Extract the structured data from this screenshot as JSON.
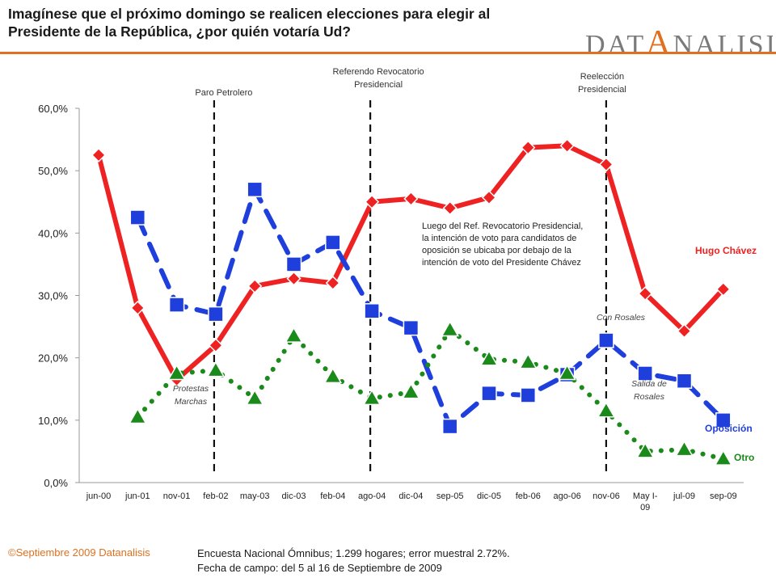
{
  "title": {
    "line1": "Imagínese que el próximo domingo se realicen elecciones para elegir al",
    "line2": "Presidente de la República, ¿por quién votaría Ud?"
  },
  "logo": {
    "text_left": "DAT",
    "text_mid": "A",
    "text_right": "NALISIS",
    "colors": {
      "text": "#7a7a7a",
      "accent": "#e07020"
    }
  },
  "chart_data": {
    "type": "line",
    "categories": [
      "jun-00",
      "jun-01",
      "nov-01",
      "feb-02",
      "may-03",
      "dic-03",
      "feb-04",
      "ago-04",
      "dic-04",
      "sep-05",
      "dic-05",
      "feb-06",
      "ago-06",
      "nov-06",
      "May I-09",
      "jul-09",
      "sep-09"
    ],
    "y_tick_labels": [
      "0,0%",
      "10,0%",
      "20,0%",
      "30,0%",
      "40,0%",
      "50,0%",
      "60,0%"
    ],
    "ylim": [
      0,
      60
    ],
    "series": [
      {
        "name": "Hugo Chávez",
        "color": "#ee2222",
        "marker": "diamond",
        "dash": "solid",
        "values": [
          52.5,
          28,
          16.5,
          22,
          31.5,
          32.7,
          32,
          45,
          45.5,
          44,
          45.7,
          53.7,
          54,
          51,
          30.3,
          24.3,
          31
        ]
      },
      {
        "name": "Oposición",
        "color": "#1f3fdd",
        "marker": "square",
        "dash": "dashed",
        "values": [
          null,
          42.5,
          28.5,
          27,
          47,
          35,
          38.5,
          27.5,
          24.8,
          9,
          14.3,
          14,
          17.3,
          22.8,
          17.5,
          16.3,
          10
        ]
      },
      {
        "name": "Otro",
        "color": "#1a8a1a",
        "marker": "triangle",
        "dash": "dotted",
        "values": [
          null,
          10.5,
          17.5,
          18,
          13.5,
          23.5,
          17,
          13.5,
          14.5,
          24.5,
          19.8,
          19.3,
          17.5,
          11.5,
          5,
          5.3,
          3.8
        ]
      }
    ],
    "events": [
      {
        "after_index": 3,
        "label_lines": [
          "Paro Petrolero"
        ]
      },
      {
        "after_index": 7,
        "label_lines": [
          "Referendo Revocatorio",
          "Presidencial"
        ]
      },
      {
        "after_index": 13,
        "label_lines": [
          "Reelección",
          "Presidencial"
        ]
      }
    ],
    "annotations": {
      "protestas": [
        "Protestas",
        "Marchas"
      ],
      "con_rosales": "Con Rosales",
      "salida_rosales": [
        "Salida de",
        "Rosales"
      ],
      "note": [
        "Luego del Ref. Revocatorio Presidencial,",
        "la intención de voto para candidatos de",
        "oposición se ubicaba por debajo de la",
        "intención de voto del Presidente Chávez"
      ]
    },
    "category_label_lines": {
      "14": [
        "May I-",
        "09"
      ]
    },
    "grid": false,
    "legend": "inline-right"
  },
  "footer": {
    "copyright": "©Septiembre 2009  Datanalisis",
    "line1": "Encuesta Nacional Ómnibus; 1.299 hogares; error muestral 2.72%.",
    "line2": "Fecha de campo: del 5 al 16 de Septiembre de 2009"
  }
}
